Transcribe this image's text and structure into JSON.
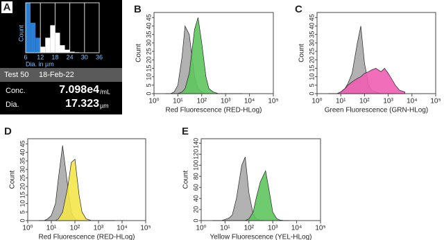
{
  "chart_data": [
    {
      "type": "histogram",
      "panel": "A",
      "xlabel": "Dia. in µm",
      "ylabel": "Count",
      "bins": [
        6,
        8,
        10,
        12,
        14,
        16,
        18,
        20,
        22,
        24,
        26,
        28,
        30,
        32,
        34,
        36
      ],
      "counts": [
        100,
        60,
        30,
        12,
        30,
        55,
        40,
        15,
        6,
        2,
        1,
        0,
        0,
        0,
        0
      ],
      "colors": [
        "#2a7fd4",
        "#2a7fd4",
        "#2a7fd4",
        "#ffffff",
        "#ffffff",
        "#ffffff",
        "#ffffff",
        "#ffffff",
        "#ffffff",
        "#ffffff",
        "#ffffff",
        "#ffffff",
        "#ffffff",
        "#ffffff",
        "#ffffff"
      ],
      "xlim": [
        6,
        36
      ],
      "xticks": [
        6,
        12,
        18,
        24,
        30,
        36
      ],
      "ylim": [
        0,
        100
      ],
      "grid": true,
      "info": {
        "test": "Test 50",
        "date": "18-Feb-22",
        "rows": [
          {
            "label": "Conc.",
            "value": "7.098e4",
            "unit": "/mL"
          },
          {
            "label": "Dia.",
            "value": "17.323",
            "unit": "µm"
          }
        ]
      }
    },
    {
      "type": "area",
      "panel": "B",
      "xlabel": "Red Fluorescence (RED-HLog)",
      "ylabel": "Count",
      "log_x": true,
      "x": [
        3,
        5,
        7,
        10,
        15,
        20,
        30,
        50,
        70,
        100,
        150,
        200,
        300,
        500,
        700,
        1000,
        1500,
        2000,
        3000,
        5000
      ],
      "series": [
        {
          "color": "#a9a9a9",
          "values": [
            0,
            0,
            1,
            5,
            22,
            40,
            35,
            10,
            3,
            1,
            0,
            0,
            0,
            0,
            0,
            0,
            0,
            0,
            0,
            0
          ]
        },
        {
          "color": "#5ec65e",
          "values": [
            0,
            0,
            0,
            0,
            1,
            3,
            12,
            38,
            45,
            30,
            10,
            3,
            1,
            0,
            0,
            0,
            0,
            0,
            0,
            0
          ]
        }
      ],
      "xlim": [
        1,
        100000
      ],
      "xticks": [
        {
          "value": 1,
          "label": "10⁰"
        },
        {
          "value": 10,
          "label": "10¹"
        },
        {
          "value": 100,
          "label": "10²"
        },
        {
          "value": 1000,
          "label": "10³"
        },
        {
          "value": 10000,
          "label": "10⁴"
        },
        {
          "value": 100000,
          "label": "10⁵"
        }
      ],
      "ylim": [
        0,
        48
      ],
      "yticks": [
        0,
        5,
        10,
        15,
        20,
        25,
        30,
        35,
        40,
        45
      ]
    },
    {
      "type": "area",
      "panel": "C",
      "xlabel": "Green Fluorescence (GRN-HLog)",
      "ylabel": "Count",
      "log_x": true,
      "x": [
        3,
        5,
        7,
        10,
        15,
        20,
        30,
        50,
        70,
        100,
        150,
        200,
        300,
        500,
        700,
        1000,
        1500,
        2000,
        3000,
        5000
      ],
      "series": [
        {
          "color": "#a9a9a9",
          "values": [
            0,
            0,
            0,
            1,
            3,
            6,
            12,
            30,
            40,
            18,
            5,
            2,
            1,
            0,
            0,
            0,
            0,
            0,
            0,
            0
          ]
        },
        {
          "color": "#f05eb4",
          "values": [
            0,
            0,
            0,
            1,
            3,
            5,
            7,
            9,
            10,
            12,
            13,
            14,
            15,
            13,
            15,
            12,
            8,
            5,
            2,
            1
          ]
        }
      ],
      "xlim": [
        1,
        100000
      ],
      "xticks": [
        {
          "value": 1,
          "label": "10⁰"
        },
        {
          "value": 10,
          "label": "10¹"
        },
        {
          "value": 100,
          "label": "10²"
        },
        {
          "value": 1000,
          "label": "10³"
        },
        {
          "value": 10000,
          "label": "10⁴"
        },
        {
          "value": 100000,
          "label": "10⁵"
        }
      ],
      "ylim": [
        0,
        48
      ],
      "yticks": [
        0,
        5,
        10,
        15,
        20,
        25,
        30,
        35,
        40,
        45
      ]
    },
    {
      "type": "area",
      "panel": "D",
      "xlabel": "Red Fluorescence (RED-HLog)",
      "ylabel": "Count",
      "log_x": true,
      "x": [
        3,
        5,
        7,
        10,
        15,
        20,
        30,
        50,
        70,
        100,
        150,
        200,
        300,
        500,
        700,
        1000,
        1500,
        2000,
        3000,
        5000
      ],
      "series": [
        {
          "color": "#a9a9a9",
          "values": [
            0,
            0,
            1,
            3,
            10,
            25,
            44,
            20,
            5,
            1,
            0,
            0,
            0,
            0,
            0,
            0,
            0,
            0,
            0,
            0
          ]
        },
        {
          "color": "#f5e64b",
          "values": [
            0,
            0,
            0,
            0,
            0,
            1,
            5,
            20,
            34,
            36,
            15,
            5,
            1,
            0,
            0,
            0,
            0,
            0,
            0,
            0
          ]
        }
      ],
      "xlim": [
        1,
        100000
      ],
      "xticks": [
        {
          "value": 1,
          "label": "10⁰"
        },
        {
          "value": 10,
          "label": "10¹"
        },
        {
          "value": 100,
          "label": "10²"
        },
        {
          "value": 1000,
          "label": "10³"
        },
        {
          "value": 10000,
          "label": "10⁴"
        },
        {
          "value": 100000,
          "label": "10⁵"
        }
      ],
      "ylim": [
        0,
        48
      ],
      "yticks": [
        0,
        5,
        10,
        15,
        20,
        25,
        30,
        35,
        40,
        45
      ]
    },
    {
      "type": "area",
      "panel": "E",
      "xlabel": "Yellow Fluorescence (YEL-HLog)",
      "ylabel": "Count",
      "log_x": true,
      "x": [
        3,
        5,
        7,
        10,
        15,
        20,
        30,
        50,
        70,
        100,
        150,
        200,
        300,
        500,
        700,
        1000,
        1500,
        2000,
        3000,
        5000
      ],
      "series": [
        {
          "color": "#a9a9a9",
          "values": [
            0,
            0,
            0,
            2,
            5,
            10,
            40,
            100,
            115,
            50,
            12,
            4,
            1,
            0,
            0,
            0,
            0,
            0,
            0,
            0
          ]
        },
        {
          "color": "#5ec65e",
          "values": [
            0,
            0,
            0,
            0,
            0,
            0,
            0,
            0,
            0,
            3,
            15,
            40,
            70,
            90,
            55,
            15,
            3,
            1,
            0,
            0
          ]
        }
      ],
      "xlim": [
        1,
        100000
      ],
      "xticks": [
        {
          "value": 1,
          "label": "10⁰"
        },
        {
          "value": 10,
          "label": "10¹"
        },
        {
          "value": 100,
          "label": "10²"
        },
        {
          "value": 1000,
          "label": "10³"
        },
        {
          "value": 10000,
          "label": "10⁴"
        },
        {
          "value": 100000,
          "label": "10⁵"
        }
      ],
      "ylim": [
        0,
        148
      ],
      "yticks": [
        0,
        20,
        40,
        60,
        80,
        100,
        120,
        140
      ]
    }
  ]
}
